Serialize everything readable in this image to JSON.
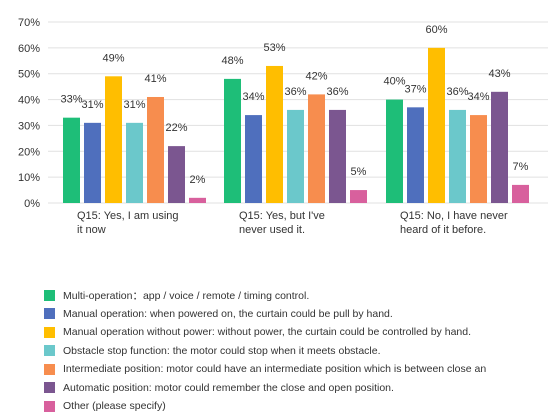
{
  "chart_data": {
    "type": "bar",
    "categories": [
      [
        "Q15: Yes, I am using",
        "it now"
      ],
      [
        "Q15: Yes, but I've",
        "never used it."
      ],
      [
        "Q15: No, I have never",
        "heard of it before."
      ]
    ],
    "ylim": [
      0,
      70
    ],
    "yticks": [
      "0%",
      "10%",
      "20%",
      "30%",
      "40%",
      "50%",
      "60%",
      "70%"
    ],
    "grid": true,
    "legend_position": "bottom",
    "series": [
      {
        "name": "Multi-operation：app / voice / remote / timing control.",
        "color": "#1ebe78",
        "values": [
          33,
          48,
          40
        ],
        "labels": [
          "33%",
          "48%",
          "40%"
        ]
      },
      {
        "name": "Manual operation: when powered on, the curtain could be pull by hand.",
        "color": "#4f6fbd",
        "values": [
          31,
          34,
          37
        ],
        "labels": [
          "31%",
          "34%",
          "37%"
        ]
      },
      {
        "name": "Manual operation without power: without power, the curtain could be controlled by hand.",
        "color": "#ffbe00",
        "values": [
          49,
          53,
          60
        ],
        "labels": [
          "49%",
          "53%",
          "60%"
        ]
      },
      {
        "name": "Obstacle stop function: the motor could stop when it meets obstacle.",
        "color": "#6bc8cb",
        "values": [
          31,
          36,
          36
        ],
        "labels": [
          "31%",
          "36%",
          "36%"
        ]
      },
      {
        "name": "Intermediate position: motor could have an intermediate position which is between close an",
        "color": "#f78d4e",
        "values": [
          41,
          42,
          34
        ],
        "labels": [
          "41%",
          "42%",
          "34%"
        ]
      },
      {
        "name": "Automatic position: motor could remember the close and open position.",
        "color": "#7b5690",
        "values": [
          22,
          36,
          43
        ],
        "labels": [
          "22%",
          "36%",
          "43%"
        ]
      },
      {
        "name": "Other (please specify)",
        "color": "#d8609d",
        "values": [
          2,
          5,
          7
        ],
        "labels": [
          "2%",
          "5%",
          "7%"
        ]
      }
    ]
  }
}
